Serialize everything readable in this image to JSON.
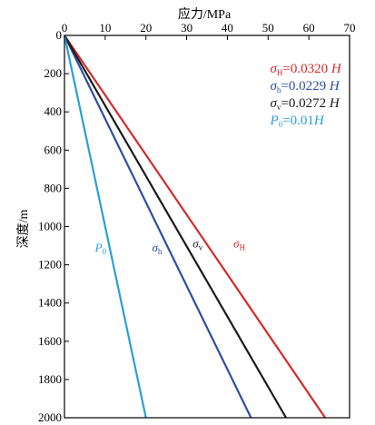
{
  "chart_data": {
    "type": "line",
    "xlabel": "应力/MPa",
    "ylabel": "深度/m",
    "xlim": [
      0,
      70
    ],
    "ylim": [
      0,
      2000
    ],
    "x_axis_position": "top",
    "y_axis_reversed": true,
    "x_ticks": [
      0,
      10,
      20,
      30,
      40,
      50,
      60,
      70
    ],
    "y_ticks": [
      0,
      200,
      400,
      600,
      800,
      1000,
      1200,
      1400,
      1600,
      1800,
      2000
    ],
    "grid": false,
    "legend_position": "top-right",
    "series": [
      {
        "label": "σH",
        "legend_sym": "σ",
        "legend_sub": "H",
        "legend_expr": "=0.0320 H",
        "color": "#d42b2b",
        "points": [
          [
            0,
            0
          ],
          [
            64.0,
            2000
          ]
        ]
      },
      {
        "label": "σh",
        "legend_sym": "σ",
        "legend_sub": "h",
        "legend_expr": "=0.0229 H",
        "color": "#2d4ea3",
        "points": [
          [
            0,
            0
          ],
          [
            45.8,
            2000
          ]
        ]
      },
      {
        "label": "σv",
        "legend_sym": "σ",
        "legend_sub": "v",
        "legend_expr": "=0.0272 H",
        "color": "#1a1a1a",
        "points": [
          [
            0,
            0
          ],
          [
            54.4,
            2000
          ]
        ]
      },
      {
        "label": "P0",
        "legend_sym": "P",
        "legend_sub": "0",
        "legend_expr": "=0.01H",
        "color": "#2a9fd8",
        "points": [
          [
            0,
            0
          ],
          [
            20.0,
            2000
          ]
        ]
      }
    ],
    "annotations": [
      {
        "sym": "P",
        "sub": "0",
        "x": 7.5,
        "y": 1130,
        "color": "#2a9fd8"
      },
      {
        "sym": "σ",
        "sub": "h",
        "x": 21.5,
        "y": 1130,
        "color": "#2d4ea3"
      },
      {
        "sym": "σ",
        "sub": "v",
        "x": 31.5,
        "y": 1110,
        "color": "#1a1a1a"
      },
      {
        "sym": "σ",
        "sub": "H",
        "x": 41.5,
        "y": 1110,
        "color": "#d42b2b"
      }
    ]
  }
}
